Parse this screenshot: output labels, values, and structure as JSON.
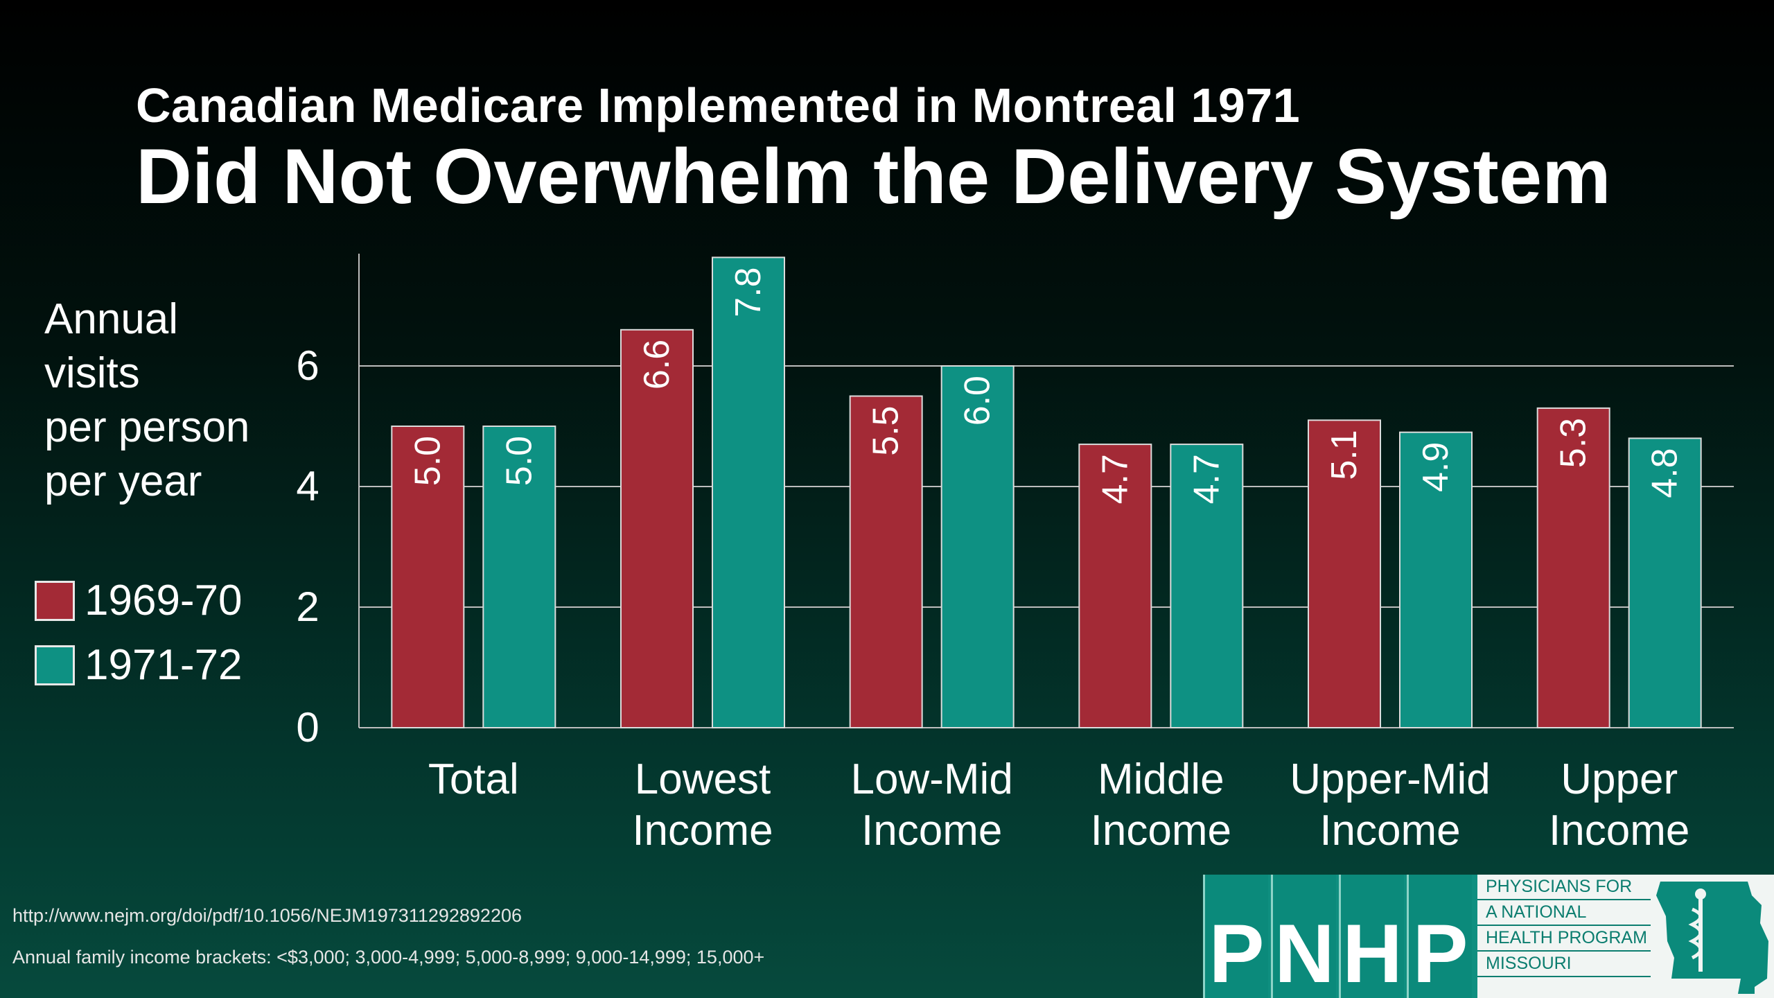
{
  "subtitle": "Canadian Medicare Implemented in Montreal 1971",
  "title": "Did Not Overwhelm the Delivery System",
  "colors": {
    "series_1": "#a32a36",
    "series_2": "#0e9183",
    "grid": "#bdbdbd"
  },
  "chart_data": {
    "type": "bar",
    "title": "Did Not Overwhelm the Delivery System",
    "subtitle": "Canadian Medicare Implemented in Montreal 1971",
    "ylabel": "Annual visits per person per year",
    "ylabel_lines": [
      "Annual",
      "visits",
      "per person",
      "per year"
    ],
    "xlabel": "",
    "ylim": [
      0,
      8
    ],
    "yticks": [
      0,
      2,
      4,
      6
    ],
    "grid": true,
    "legend": "left",
    "categories": [
      [
        "Total"
      ],
      [
        "Lowest",
        "Income"
      ],
      [
        "Low-Mid",
        "Income"
      ],
      [
        "Middle",
        "Income"
      ],
      [
        "Upper-Mid",
        "Income"
      ],
      [
        "Upper",
        "Income"
      ]
    ],
    "series": [
      {
        "name": "1969-70",
        "values": [
          5.0,
          6.6,
          5.5,
          4.7,
          5.1,
          5.3
        ],
        "labels": [
          "5.0",
          "6.6",
          "5.5",
          "4.7",
          "5.1",
          "5.3"
        ]
      },
      {
        "name": "1971-72",
        "values": [
          5.0,
          7.8,
          6.0,
          4.7,
          4.9,
          4.8
        ],
        "labels": [
          "5.0",
          "7.8",
          "6.0",
          "4.7",
          "4.9",
          "4.8"
        ]
      }
    ]
  },
  "source_url": "http://www.nejm.org/doi/pdf/10.1056/NEJM197311292892206",
  "income_note": "Annual family income brackets: <$3,000; 3,000-4,999; 5,000-8,999; 9,000-14,999; 15,000+",
  "logo": {
    "letters": [
      "P",
      "N",
      "H",
      "P"
    ],
    "lines": [
      "PHYSICIANS FOR",
      "A NATIONAL",
      "HEALTH PROGRAM",
      "MISSOURI"
    ]
  }
}
